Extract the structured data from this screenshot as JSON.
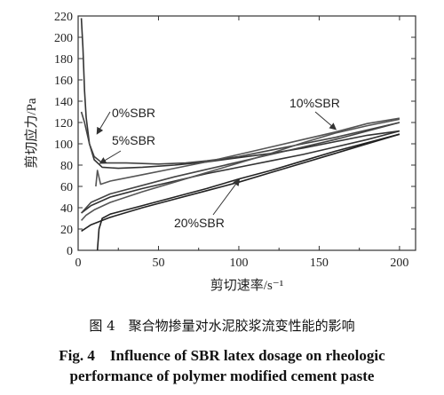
{
  "chart_data": {
    "type": "line",
    "xlabel": "剪切速率/s⁻¹",
    "ylabel": "剪切应力/Pa",
    "xlim": [
      0,
      210
    ],
    "ylim": [
      0,
      220
    ],
    "xticks": [
      0,
      50,
      100,
      150,
      200
    ],
    "yticks": [
      0,
      20,
      40,
      60,
      80,
      100,
      120,
      140,
      160,
      180,
      200,
      220
    ],
    "series": [
      {
        "name": "0%SBR",
        "color": "#333333",
        "up": [
          [
            2,
            218
          ],
          [
            3,
            190
          ],
          [
            4,
            150
          ],
          [
            5,
            125
          ],
          [
            7,
            100
          ],
          [
            10,
            85
          ],
          [
            15,
            78
          ],
          [
            25,
            77
          ],
          [
            40,
            78
          ],
          [
            60,
            80
          ],
          [
            80,
            83
          ],
          [
            100,
            87
          ],
          [
            120,
            91
          ],
          [
            140,
            96
          ],
          [
            160,
            102
          ],
          [
            180,
            108
          ],
          [
            200,
            112
          ]
        ],
        "down": [
          [
            200,
            112
          ],
          [
            180,
            104
          ],
          [
            160,
            97
          ],
          [
            140,
            90
          ],
          [
            120,
            84
          ],
          [
            100,
            78
          ],
          [
            80,
            72
          ],
          [
            60,
            65
          ],
          [
            40,
            58
          ],
          [
            20,
            50
          ],
          [
            8,
            42
          ],
          [
            2,
            35
          ]
        ]
      },
      {
        "name": "5%SBR",
        "color": "#444444",
        "up": [
          [
            2,
            130
          ],
          [
            4,
            120
          ],
          [
            7,
            100
          ],
          [
            10,
            88
          ],
          [
            15,
            82
          ],
          [
            30,
            82
          ],
          [
            50,
            81
          ],
          [
            67,
            82
          ],
          [
            80,
            84
          ],
          [
            100,
            88
          ],
          [
            120,
            94
          ],
          [
            140,
            100
          ],
          [
            160,
            106
          ],
          [
            180,
            113
          ],
          [
            200,
            120
          ]
        ],
        "down": [
          [
            200,
            120
          ],
          [
            180,
            112
          ],
          [
            160,
            104
          ],
          [
            140,
            97
          ],
          [
            120,
            90
          ],
          [
            100,
            83
          ],
          [
            80,
            76
          ],
          [
            60,
            69
          ],
          [
            40,
            61
          ],
          [
            20,
            53
          ],
          [
            8,
            45
          ],
          [
            2,
            35
          ]
        ]
      },
      {
        "name": "10%SBR",
        "color": "#555555",
        "up": [
          [
            2,
            28
          ],
          [
            5,
            33
          ],
          [
            10,
            38
          ],
          [
            20,
            45
          ],
          [
            40,
            55
          ],
          [
            60,
            64
          ],
          [
            80,
            73
          ],
          [
            100,
            82
          ],
          [
            120,
            91
          ],
          [
            140,
            101
          ],
          [
            160,
            110
          ],
          [
            180,
            117
          ],
          [
            200,
            123
          ]
        ],
        "down": [
          [
            200,
            124
          ],
          [
            180,
            119
          ],
          [
            160,
            111
          ],
          [
            140,
            104
          ],
          [
            120,
            97
          ],
          [
            100,
            90
          ],
          [
            80,
            83
          ],
          [
            60,
            77
          ],
          [
            40,
            71
          ],
          [
            20,
            65
          ],
          [
            14,
            62
          ],
          [
            12,
            75
          ],
          [
            11,
            60
          ]
        ]
      },
      {
        "name": "20%SBR",
        "color": "#222222",
        "up": [
          [
            12,
            0
          ],
          [
            13,
            20
          ],
          [
            15,
            30
          ],
          [
            20,
            34
          ],
          [
            40,
            42
          ],
          [
            60,
            50
          ],
          [
            80,
            58
          ],
          [
            100,
            67
          ],
          [
            120,
            75
          ],
          [
            140,
            84
          ],
          [
            160,
            93
          ],
          [
            180,
            101
          ],
          [
            200,
            109
          ]
        ],
        "down": [
          [
            200,
            109
          ],
          [
            180,
            100
          ],
          [
            160,
            91
          ],
          [
            140,
            82
          ],
          [
            120,
            73
          ],
          [
            100,
            64
          ],
          [
            80,
            56
          ],
          [
            60,
            48
          ],
          [
            40,
            40
          ],
          [
            20,
            31
          ],
          [
            8,
            24
          ],
          [
            2,
            18
          ]
        ]
      }
    ],
    "annotations": [
      {
        "text": "0%SBR",
        "series": "0%SBR"
      },
      {
        "text": "5%SBR",
        "series": "5%SBR"
      },
      {
        "text": "10%SBR",
        "series": "10%SBR"
      },
      {
        "text": "20%SBR",
        "series": "20%SBR"
      }
    ]
  },
  "caption": {
    "cn": "图 4　聚合物掺量对水泥胶浆流变性能的影响",
    "en_line1": "Fig. 4　Influence of SBR latex dosage on rheologic",
    "en_line2": "performance of polymer modified cement paste"
  }
}
